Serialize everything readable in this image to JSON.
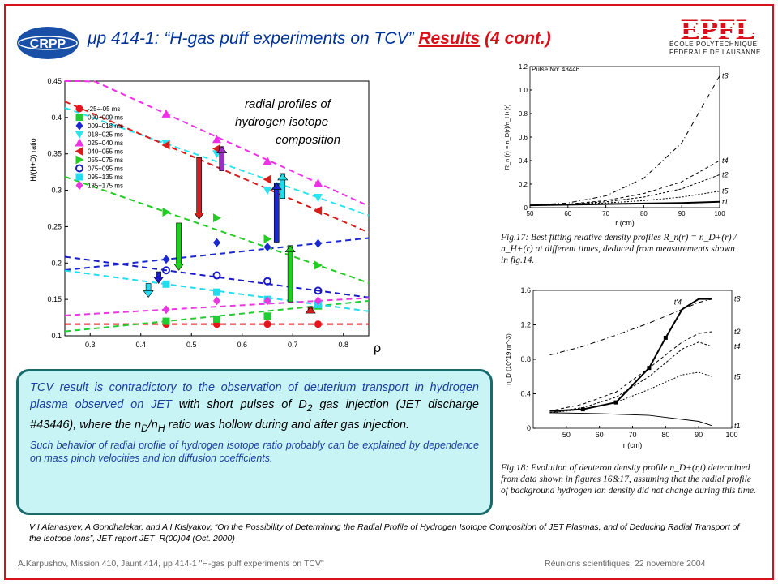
{
  "header": {
    "logo_left_text": "CRPP",
    "title_prefix": "μp 414-1: “H-gas puff experiments on TCV”",
    "title_results": "Results",
    "title_cont": "(4 cont.)",
    "logo_right_text": "EPFL",
    "logo_right_sub1": "ÉCOLE POLYTECHNIQUE",
    "logo_right_sub2": "FÉDÉRALE DE LAUSANNE",
    "accent_color": "#d8101a",
    "title_color": "#003399"
  },
  "plot_note": {
    "line1": "radial profiles of",
    "line2": "hydrogen isotope",
    "line3": "composition"
  },
  "chart_data": [
    {
      "type": "scatter",
      "ylabel": "H/(H+D) ratio",
      "xlabel": "ρ",
      "xlim": [
        0.25,
        0.85
      ],
      "ylim": [
        0.1,
        0.45
      ],
      "x_ticks": [
        "0.3",
        "0.4",
        "0.5",
        "0.6",
        "0.7",
        "0.8"
      ],
      "y_ticks": [
        "0.1",
        "0.15",
        "0.2",
        "0.25",
        "0.3",
        "0.35",
        "0.4",
        "0.45"
      ],
      "grid": false,
      "legend_position": "top-left",
      "series": [
        {
          "name": "-25÷-05 ms",
          "color": "#e8141c",
          "marker": "circle",
          "x": [
            0.45,
            0.55,
            0.65,
            0.75
          ],
          "y": [
            0.116,
            0.116,
            0.116,
            0.116
          ]
        },
        {
          "name": "000÷009 ms",
          "color": "#22cc33",
          "marker": "square",
          "x": [
            0.45,
            0.55,
            0.65,
            0.75
          ],
          "y": [
            0.12,
            0.123,
            0.127,
            0.141
          ]
        },
        {
          "name": "009÷018 ms",
          "color": "#1a28d0",
          "marker": "diamond",
          "x": [
            0.45,
            0.55,
            0.65,
            0.75
          ],
          "y": [
            0.205,
            0.228,
            0.222,
            0.227
          ]
        },
        {
          "name": "018÷025 ms",
          "color": "#2ae4ee",
          "marker": "triangle-down",
          "x": [
            0.45,
            0.55,
            0.65,
            0.75
          ],
          "y": [
            0.364,
            0.35,
            0.3,
            0.29
          ]
        },
        {
          "name": "025÷040 ms",
          "color": "#f030e8",
          "marker": "triangle-up",
          "x": [
            0.45,
            0.55,
            0.65,
            0.75
          ],
          "y": [
            0.405,
            0.37,
            0.34,
            0.31
          ]
        },
        {
          "name": "040÷055 ms",
          "color": "#d81c1c",
          "marker": "triangle-left",
          "x": [
            0.45,
            0.55,
            0.65,
            0.75
          ],
          "y": [
            0.362,
            0.357,
            0.315,
            0.272
          ]
        },
        {
          "name": "055÷075 ms",
          "color": "#22cc22",
          "marker": "triangle-right",
          "x": [
            0.45,
            0.55,
            0.65,
            0.75
          ],
          "y": [
            0.27,
            0.262,
            0.233,
            0.197
          ]
        },
        {
          "name": "075÷095 ms",
          "color": "#1a1ac8",
          "marker": "circle-open",
          "x": [
            0.45,
            0.55,
            0.65,
            0.75
          ],
          "y": [
            0.19,
            0.183,
            0.175,
            0.162
          ]
        },
        {
          "name": "095÷135 ms",
          "color": "#22dcee",
          "marker": "square",
          "x": [
            0.45,
            0.55,
            0.65,
            0.75
          ],
          "y": [
            0.171,
            0.16,
            0.15,
            0.143
          ]
        },
        {
          "name": "135÷175 ms",
          "color": "#ea38e0",
          "marker": "diamond",
          "x": [
            0.45,
            0.55,
            0.65,
            0.75
          ],
          "y": [
            0.136,
            0.148,
            0.148,
            0.148
          ]
        }
      ],
      "arrows": [
        {
          "x": 0.56,
          "y_from": 0.32,
          "y_to": 0.36,
          "color": "#9b2fc4"
        },
        {
          "x": 0.515,
          "y_from": 0.345,
          "y_to": 0.26,
          "color": "#d81c1c"
        },
        {
          "x": 0.475,
          "y_from": 0.255,
          "y_to": 0.19,
          "color": "#22cc22"
        },
        {
          "x": 0.68,
          "y_from": 0.282,
          "y_to": 0.323,
          "color": "#22dcee"
        },
        {
          "x": 0.668,
          "y_from": 0.222,
          "y_to": 0.31,
          "color": "#1a28d0"
        },
        {
          "x": 0.695,
          "y_from": 0.14,
          "y_to": 0.224,
          "color": "#22cc22"
        },
        {
          "x": 0.435,
          "y_from": 0.188,
          "y_to": 0.172,
          "color": "#1a1ac8"
        },
        {
          "x": 0.415,
          "y_from": 0.172,
          "y_to": 0.153,
          "color": "#22dcee"
        },
        {
          "x": 0.735,
          "y_from": 0.128,
          "y_to": 0.14,
          "color": "#d81c1c"
        }
      ]
    },
    {
      "type": "line",
      "title": "Pulse No: 43446",
      "xlabel": "r (cm)",
      "ylabel": "R_n (r) = n_D(r)/n_H+(r)",
      "xlim": [
        50,
        100
      ],
      "ylim": [
        0,
        1.2
      ],
      "x_ticks": [
        "50",
        "60",
        "70",
        "80",
        "90",
        "100"
      ],
      "y_ticks": [
        "0",
        "0.2",
        "0.4",
        "0.6",
        "0.8",
        "1.0",
        "1.2"
      ],
      "series": [
        {
          "name": "t3",
          "x": [
            50,
            60,
            70,
            80,
            90,
            100
          ],
          "y": [
            0.02,
            0.04,
            0.1,
            0.25,
            0.55,
            1.12
          ]
        },
        {
          "name": "t4",
          "x": [
            50,
            60,
            70,
            80,
            90,
            100
          ],
          "y": [
            0.02,
            0.03,
            0.06,
            0.12,
            0.22,
            0.4
          ]
        },
        {
          "name": "t2",
          "x": [
            50,
            60,
            70,
            80,
            90,
            100
          ],
          "y": [
            0.02,
            0.03,
            0.05,
            0.09,
            0.16,
            0.28
          ]
        },
        {
          "name": "t5",
          "x": [
            50,
            60,
            70,
            80,
            90,
            100
          ],
          "y": [
            0.02,
            0.03,
            0.04,
            0.06,
            0.09,
            0.14
          ]
        },
        {
          "name": "t1",
          "x": [
            50,
            60,
            70,
            80,
            90,
            100
          ],
          "y": [
            0.02,
            0.025,
            0.03,
            0.035,
            0.04,
            0.05
          ]
        }
      ]
    },
    {
      "type": "line",
      "xlabel": "r (cm)",
      "ylabel": "n_D (10^19 m^-3)",
      "xlim": [
        40,
        100
      ],
      "ylim": [
        0,
        1.6
      ],
      "x_ticks": [
        "50",
        "60",
        "70",
        "80",
        "90",
        "100"
      ],
      "y_ticks": [
        "0",
        "0.4",
        "0.8",
        "1.2",
        "1.6"
      ],
      "series": [
        {
          "name": "t'4",
          "x": [
            45,
            55,
            65,
            75,
            80,
            85,
            90,
            94
          ],
          "y": [
            0.2,
            0.22,
            0.3,
            0.7,
            1.05,
            1.38,
            1.5,
            1.5
          ]
        },
        {
          "name": "t3",
          "x": [
            45,
            55,
            65,
            75,
            85,
            90,
            94
          ],
          "y": [
            0.85,
            0.95,
            1.08,
            1.22,
            1.38,
            1.46,
            1.5
          ]
        },
        {
          "name": "t2",
          "x": [
            45,
            55,
            65,
            75,
            85,
            90,
            94
          ],
          "y": [
            0.2,
            0.28,
            0.42,
            0.7,
            1.0,
            1.1,
            1.12
          ]
        },
        {
          "name": "t4",
          "x": [
            45,
            55,
            65,
            75,
            85,
            90,
            94
          ],
          "y": [
            0.18,
            0.24,
            0.36,
            0.6,
            0.92,
            1.0,
            0.95
          ]
        },
        {
          "name": "t5",
          "x": [
            45,
            55,
            65,
            75,
            85,
            90,
            94
          ],
          "y": [
            0.18,
            0.22,
            0.3,
            0.45,
            0.62,
            0.65,
            0.6
          ]
        },
        {
          "name": "t1",
          "x": [
            45,
            60,
            75,
            90,
            94
          ],
          "y": [
            0.18,
            0.17,
            0.15,
            0.08,
            0.03
          ]
        }
      ]
    }
  ],
  "fig17_caption": "Fig.17:  Best fitting relative density profiles R_n(r) = n_D+(r) / n_H+(r) at different times, deduced from measurements shown in fig.14.",
  "fig18_caption": "Fig.18: Evolution of deuteron density profile n_D+(r,t) determined from data shown in figures 16&17, assuming that the radial profile of background hydrogen ion density did not change during this time.",
  "callout": {
    "main_a": "TCV result is contradictory to the observation of deuterium transport in hydrogen plasma observed on JET",
    "main_b": " with short pulses of D",
    "main_b_sub": "2",
    "main_c": " gas injection (JET discharge #43446), where the n",
    "main_c_sub1": "D",
    "main_d": "/n",
    "main_d_sub2": "H",
    "main_e": " ratio was hollow during and after gas injection.",
    "sub": "Such behavior of radial profile of hydrogen isotope ratio probably can be explained by dependence on mass pinch velocities and ion diffusion coefficients."
  },
  "reference": "V I Afanasyev, A Gondhalekar, and A I Kislyakov, “On the Possibility of Determining the Radial Profile of Hydrogen Isotope Composition of JET Plasmas, and of Deducing Radial Transport of the Isotope Ions”, JET report JET–R(00)04 (Oct. 2000)",
  "footer": {
    "left": "A.Karpushov, Mission 410, Jaunt 414, μp 414-1 \"H-gas puff experiments on TCV\"",
    "right": "Réunions scientifiques, 22 novembre 2004"
  }
}
